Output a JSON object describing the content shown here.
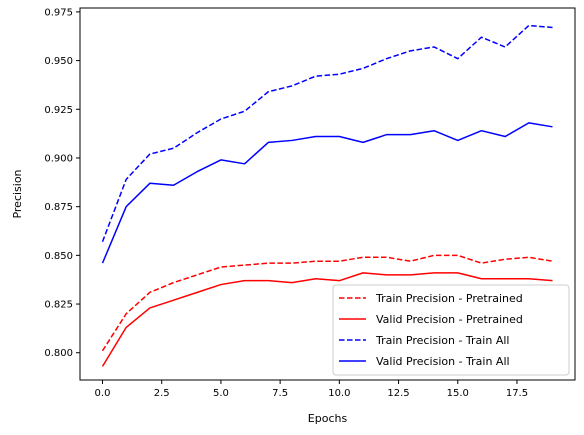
{
  "chart_data": {
    "type": "line",
    "title": "",
    "xlabel": "Epochs",
    "ylabel": "Precision",
    "xlim": [
      -0.95,
      19.95
    ],
    "ylim": [
      0.786,
      0.977
    ],
    "xticks": [
      0.0,
      2.5,
      5.0,
      7.5,
      10.0,
      12.5,
      15.0,
      17.5
    ],
    "xtick_labels": [
      "0.0",
      "2.5",
      "5.0",
      "7.5",
      "10.0",
      "12.5",
      "15.0",
      "17.5"
    ],
    "yticks": [
      0.8,
      0.825,
      0.85,
      0.875,
      0.9,
      0.925,
      0.95,
      0.975
    ],
    "ytick_labels": [
      "0.800",
      "0.825",
      "0.850",
      "0.875",
      "0.900",
      "0.925",
      "0.950",
      "0.975"
    ],
    "grid": false,
    "legend_position": "lower-right",
    "x": [
      0,
      1,
      2,
      3,
      4,
      5,
      6,
      7,
      8,
      9,
      10,
      11,
      12,
      13,
      14,
      15,
      16,
      17,
      18,
      19
    ],
    "series": [
      {
        "name": "Train Precision - Pretrained",
        "color": "#ff0000",
        "linestyle": "dashed",
        "values": [
          0.801,
          0.82,
          0.831,
          0.836,
          0.84,
          0.844,
          0.845,
          0.846,
          0.846,
          0.847,
          0.847,
          0.849,
          0.849,
          0.847,
          0.85,
          0.85,
          0.846,
          0.848,
          0.849,
          0.847
        ]
      },
      {
        "name": "Valid Precision - Pretrained",
        "color": "#ff0000",
        "linestyle": "solid",
        "values": [
          0.793,
          0.813,
          0.823,
          0.827,
          0.831,
          0.835,
          0.837,
          0.837,
          0.836,
          0.838,
          0.837,
          0.841,
          0.84,
          0.84,
          0.841,
          0.841,
          0.838,
          0.838,
          0.838,
          0.837
        ]
      },
      {
        "name": "Train Precision - Train All",
        "color": "#0000ff",
        "linestyle": "dashed",
        "values": [
          0.857,
          0.889,
          0.902,
          0.905,
          0.913,
          0.92,
          0.924,
          0.934,
          0.937,
          0.942,
          0.943,
          0.946,
          0.951,
          0.955,
          0.957,
          0.951,
          0.962,
          0.957,
          0.968,
          0.967
        ]
      },
      {
        "name": "Valid Precision - Train All",
        "color": "#0000ff",
        "linestyle": "solid",
        "values": [
          0.846,
          0.875,
          0.887,
          0.886,
          0.893,
          0.899,
          0.897,
          0.908,
          0.909,
          0.911,
          0.911,
          0.908,
          0.912,
          0.912,
          0.914,
          0.909,
          0.914,
          0.911,
          0.918,
          0.916
        ]
      }
    ]
  }
}
